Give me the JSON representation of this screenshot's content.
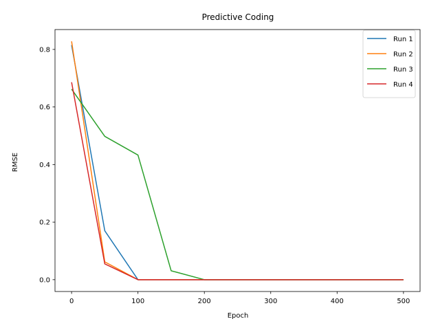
{
  "chart_data": {
    "type": "line",
    "title": "Predictive Coding",
    "xlabel": "Epoch",
    "ylabel": "RMSE",
    "xlim": [
      -25,
      525
    ],
    "ylim": [
      -0.041,
      0.869
    ],
    "xticks": [
      0,
      100,
      200,
      300,
      400,
      500
    ],
    "xtick_labels": [
      "0",
      "100",
      "200",
      "300",
      "400",
      "500"
    ],
    "yticks": [
      0.0,
      0.2,
      0.4,
      0.6,
      0.8
    ],
    "ytick_labels": [
      "0.0",
      "0.2",
      "0.4",
      "0.6",
      "0.8"
    ],
    "grid": false,
    "legend_position": "top-right",
    "x": [
      0,
      50,
      100,
      150,
      200,
      250,
      300,
      350,
      400,
      450,
      500
    ],
    "series": [
      {
        "name": "Run 1",
        "color": "#1f77b4",
        "values": [
          0.815,
          0.17,
          0.0,
          0.0,
          0.0,
          0.0,
          0.0,
          0.0,
          0.0,
          0.0,
          0.0
        ]
      },
      {
        "name": "Run 2",
        "color": "#ff7f0e",
        "values": [
          0.828,
          0.062,
          0.0,
          0.0,
          0.0,
          0.0,
          0.0,
          0.0,
          0.0,
          0.0,
          0.0
        ]
      },
      {
        "name": "Run 3",
        "color": "#2ca02c",
        "values": [
          0.662,
          0.498,
          0.433,
          0.031,
          0.0,
          0.0,
          0.0,
          0.0,
          0.0,
          0.0,
          0.0
        ]
      },
      {
        "name": "Run 4",
        "color": "#d62728",
        "values": [
          0.686,
          0.055,
          0.0,
          0.0,
          0.0,
          0.0,
          0.0,
          0.0,
          0.0,
          0.0,
          0.0
        ]
      }
    ]
  }
}
